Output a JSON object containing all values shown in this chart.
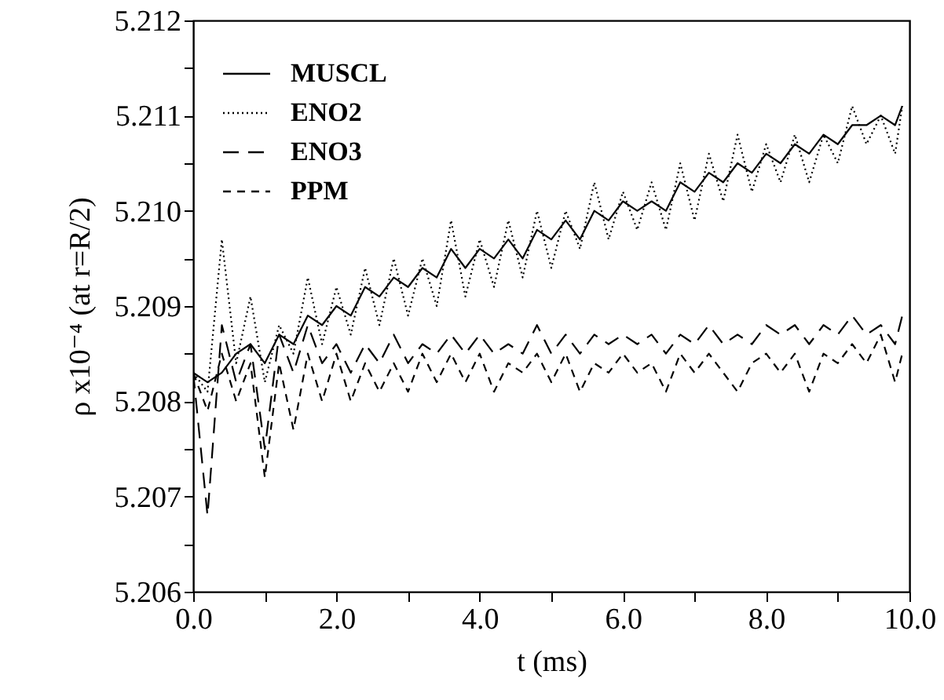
{
  "chart_data": {
    "type": "line",
    "xlabel": "t (ms)",
    "ylabel": "ρ x10⁻⁴ (at r=R/2)",
    "x": [
      0,
      0.2,
      0.4,
      0.6,
      0.8,
      1.0,
      1.2,
      1.4,
      1.6,
      1.8,
      2.0,
      2.2,
      2.4,
      2.6,
      2.8,
      3.0,
      3.2,
      3.4,
      3.6,
      3.8,
      4.0,
      4.2,
      4.4,
      4.6,
      4.8,
      5.0,
      5.2,
      5.4,
      5.6,
      5.8,
      6.0,
      6.2,
      6.4,
      6.6,
      6.8,
      7.0,
      7.2,
      7.4,
      7.6,
      7.8,
      8.0,
      8.2,
      8.4,
      8.6,
      8.8,
      9.0,
      9.2,
      9.4,
      9.6,
      9.8,
      9.9
    ],
    "series": [
      {
        "name": "MUSCL",
        "color": "#000000",
        "line_style": "solid",
        "values": [
          5.2083,
          5.2082,
          5.2083,
          5.2085,
          5.2086,
          5.2084,
          5.2087,
          5.2086,
          5.2089,
          5.2088,
          5.209,
          5.2089,
          5.2092,
          5.2091,
          5.2093,
          5.2092,
          5.2094,
          5.2093,
          5.2096,
          5.2094,
          5.2096,
          5.2095,
          5.2097,
          5.2095,
          5.2098,
          5.2097,
          5.2099,
          5.2097,
          5.21,
          5.2099,
          5.2101,
          5.21,
          5.2101,
          5.21,
          5.2103,
          5.2102,
          5.2104,
          5.2103,
          5.2105,
          5.2104,
          5.2106,
          5.2105,
          5.2107,
          5.2106,
          5.2108,
          5.2107,
          5.2109,
          5.2109,
          5.211,
          5.2109,
          5.2111
        ]
      },
      {
        "name": "ENO2",
        "color": "#000000",
        "line_style": "dotted",
        "values": [
          5.2083,
          5.2081,
          5.2097,
          5.2084,
          5.2091,
          5.2082,
          5.2088,
          5.2085,
          5.2093,
          5.2086,
          5.2092,
          5.2087,
          5.2094,
          5.2088,
          5.2095,
          5.2089,
          5.2095,
          5.209,
          5.2099,
          5.2091,
          5.2097,
          5.2092,
          5.2099,
          5.2093,
          5.21,
          5.2094,
          5.21,
          5.2096,
          5.2103,
          5.2097,
          5.2102,
          5.2098,
          5.2103,
          5.2098,
          5.2105,
          5.2099,
          5.2106,
          5.2101,
          5.2108,
          5.2102,
          5.2107,
          5.2103,
          5.2108,
          5.2103,
          5.2108,
          5.2105,
          5.2111,
          5.2107,
          5.211,
          5.2106,
          5.2111
        ]
      },
      {
        "name": "ENO3",
        "color": "#000000",
        "line_style": "dashed",
        "values": [
          5.2083,
          5.2068,
          5.2088,
          5.2082,
          5.2086,
          5.2075,
          5.2087,
          5.2083,
          5.2088,
          5.2084,
          5.2086,
          5.2083,
          5.2086,
          5.2084,
          5.2087,
          5.2084,
          5.2086,
          5.2085,
          5.2087,
          5.2085,
          5.2087,
          5.2085,
          5.2086,
          5.2085,
          5.2088,
          5.2085,
          5.2087,
          5.2085,
          5.2087,
          5.2086,
          5.2087,
          5.2086,
          5.2087,
          5.2085,
          5.2087,
          5.2086,
          5.2088,
          5.2086,
          5.2087,
          5.2086,
          5.2088,
          5.2087,
          5.2088,
          5.2086,
          5.2088,
          5.2087,
          5.2089,
          5.2087,
          5.2088,
          5.2086,
          5.2089
        ]
      },
      {
        "name": "PPM",
        "color": "#000000",
        "line_style": "dashed",
        "values": [
          5.2083,
          5.2079,
          5.2085,
          5.208,
          5.2084,
          5.2072,
          5.2084,
          5.2077,
          5.2085,
          5.208,
          5.2085,
          5.208,
          5.2084,
          5.2081,
          5.2084,
          5.2081,
          5.2085,
          5.2082,
          5.2085,
          5.2082,
          5.2085,
          5.2081,
          5.2084,
          5.2083,
          5.2085,
          5.2082,
          5.2085,
          5.2081,
          5.2084,
          5.2083,
          5.2085,
          5.2083,
          5.2084,
          5.2081,
          5.2085,
          5.2083,
          5.2085,
          5.2083,
          5.2081,
          5.2084,
          5.2085,
          5.2083,
          5.2085,
          5.2081,
          5.2085,
          5.2084,
          5.2086,
          5.2084,
          5.2087,
          5.2082,
          5.2085
        ]
      }
    ],
    "xlim": [
      0,
      10
    ],
    "xticks": [
      {
        "value": 0,
        "label": "0.0"
      },
      {
        "value": 1,
        "label": null
      },
      {
        "value": 2,
        "label": "2.0"
      },
      {
        "value": 3,
        "label": null
      },
      {
        "value": 4,
        "label": "4.0"
      },
      {
        "value": 5,
        "label": null
      },
      {
        "value": 6,
        "label": "6.0"
      },
      {
        "value": 7,
        "label": null
      },
      {
        "value": 8,
        "label": "8.0"
      },
      {
        "value": 9,
        "label": null
      },
      {
        "value": 10,
        "label": "10.0"
      }
    ],
    "ylim": [
      5.206,
      5.212
    ],
    "yticks": [
      5.206,
      {
        "value": 5.2065,
        "label": null
      },
      5.207,
      {
        "value": 5.2075,
        "label": null
      },
      5.208,
      {
        "value": 5.2085,
        "label": null
      },
      5.209,
      {
        "value": 5.2095,
        "label": null
      },
      {
        "value": 5.21,
        "label": "5.210"
      },
      {
        "value": 5.2105,
        "label": null
      },
      5.211,
      {
        "value": 5.2115,
        "label": null
      },
      5.212
    ],
    "legend": "top left"
  }
}
